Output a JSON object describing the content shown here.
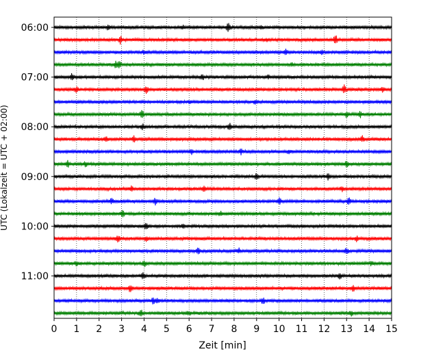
{
  "chart_data": {
    "type": "line",
    "subtype": "helicorder",
    "xlabel": "Zeit  [min]",
    "ylabel": "UTC (Lokalzeit = UTC + 02:00)",
    "xlim": [
      0,
      15
    ],
    "x_ticks": [
      "0",
      "1",
      "2",
      "3",
      "4",
      "5",
      "6",
      "7",
      "8",
      "9",
      "10",
      "11",
      "12",
      "13",
      "14",
      "15"
    ],
    "y_tick_labels": [
      "06:00",
      "07:00",
      "08:00",
      "09:00",
      "10:00",
      "11:00"
    ],
    "trace_start_times": [
      "06:00",
      "06:15",
      "06:30",
      "06:45",
      "07:00",
      "07:15",
      "07:30",
      "07:45",
      "08:00",
      "08:15",
      "08:30",
      "08:45",
      "09:00",
      "09:15",
      "09:30",
      "09:45",
      "10:00",
      "10:15",
      "10:30",
      "10:45",
      "11:00",
      "11:15",
      "11:30",
      "11:45"
    ],
    "color_cycle": [
      "#000000",
      "#ff0000",
      "#0000ff",
      "#008000"
    ],
    "grid": "vertical dotted lines at each minute",
    "traces": [
      {
        "start": "06:00",
        "color": "#000000",
        "spikes": [
          [
            2.4,
            0.5
          ],
          [
            5.7,
            0.4
          ],
          [
            7.75,
            0.9
          ],
          [
            9.2,
            0.35
          ]
        ]
      },
      {
        "start": "06:15",
        "color": "#ff0000",
        "spikes": [
          [
            2.95,
            0.8
          ],
          [
            12.5,
            1.0
          ],
          [
            9.45,
            0.3
          ]
        ]
      },
      {
        "start": "06:30",
        "color": "#0000ff",
        "spikes": [
          [
            4.0,
            0.3
          ],
          [
            10.3,
            0.45
          ],
          [
            11.9,
            0.35
          ]
        ]
      },
      {
        "start": "06:45",
        "color": "#008000",
        "spikes": [
          [
            2.75,
            0.7
          ],
          [
            2.9,
            0.6
          ],
          [
            10.6,
            0.3
          ]
        ]
      },
      {
        "start": "07:00",
        "color": "#000000",
        "spikes": [
          [
            0.8,
            0.8
          ],
          [
            6.6,
            0.6
          ],
          [
            9.5,
            0.35
          ]
        ]
      },
      {
        "start": "07:15",
        "color": "#ff0000",
        "spikes": [
          [
            1.0,
            0.5
          ],
          [
            4.1,
            0.7
          ],
          [
            12.9,
            0.9
          ],
          [
            14.6,
            0.5
          ]
        ]
      },
      {
        "start": "07:30",
        "color": "#0000ff",
        "spikes": [
          [
            6.0,
            0.3
          ],
          [
            8.95,
            0.4
          ]
        ]
      },
      {
        "start": "07:45",
        "color": "#008000",
        "spikes": [
          [
            3.9,
            0.8
          ],
          [
            13.0,
            0.6
          ],
          [
            13.6,
            0.5
          ]
        ]
      },
      {
        "start": "08:00",
        "color": "#000000",
        "spikes": [
          [
            3.95,
            0.5
          ],
          [
            7.8,
            0.8
          ]
        ]
      },
      {
        "start": "08:15",
        "color": "#ff0000",
        "spikes": [
          [
            2.3,
            0.5
          ],
          [
            3.55,
            0.6
          ],
          [
            13.7,
            0.6
          ]
        ]
      },
      {
        "start": "08:30",
        "color": "#0000ff",
        "spikes": [
          [
            6.1,
            0.4
          ],
          [
            8.3,
            0.5
          ],
          [
            10.45,
            0.3
          ]
        ]
      },
      {
        "start": "08:45",
        "color": "#008000",
        "spikes": [
          [
            0.6,
            0.7
          ],
          [
            1.4,
            0.4
          ],
          [
            13.0,
            0.7
          ]
        ]
      },
      {
        "start": "09:00",
        "color": "#000000",
        "spikes": [
          [
            9.0,
            0.5
          ],
          [
            12.2,
            0.7
          ]
        ]
      },
      {
        "start": "09:15",
        "color": "#ff0000",
        "spikes": [
          [
            3.45,
            0.7
          ],
          [
            6.65,
            0.6
          ],
          [
            12.8,
            0.4
          ]
        ]
      },
      {
        "start": "09:30",
        "color": "#0000ff",
        "spikes": [
          [
            2.55,
            0.6
          ],
          [
            4.5,
            0.6
          ],
          [
            10.0,
            0.6
          ],
          [
            13.1,
            0.7
          ]
        ]
      },
      {
        "start": "09:45",
        "color": "#008000",
        "spikes": [
          [
            3.05,
            0.8
          ],
          [
            7.4,
            0.4
          ]
        ]
      },
      {
        "start": "10:00",
        "color": "#000000",
        "spikes": [
          [
            4.1,
            0.8
          ],
          [
            5.7,
            0.4
          ]
        ]
      },
      {
        "start": "10:15",
        "color": "#ff0000",
        "spikes": [
          [
            2.85,
            0.7
          ],
          [
            4.1,
            0.5
          ],
          [
            13.45,
            0.5
          ]
        ]
      },
      {
        "start": "10:30",
        "color": "#0000ff",
        "spikes": [
          [
            6.4,
            0.6
          ],
          [
            8.2,
            0.5
          ],
          [
            13.0,
            0.7
          ]
        ]
      },
      {
        "start": "10:45",
        "color": "#008000",
        "spikes": [
          [
            1.0,
            0.4
          ],
          [
            4.0,
            0.7
          ],
          [
            14.1,
            0.4
          ]
        ]
      },
      {
        "start": "11:00",
        "color": "#000000",
        "spikes": [
          [
            3.95,
            0.7
          ],
          [
            12.7,
            0.5
          ]
        ]
      },
      {
        "start": "11:15",
        "color": "#ff0000",
        "spikes": [
          [
            3.4,
            0.9
          ],
          [
            13.3,
            0.6
          ]
        ]
      },
      {
        "start": "11:30",
        "color": "#0000ff",
        "spikes": [
          [
            4.4,
            0.6
          ],
          [
            4.6,
            0.5
          ],
          [
            9.3,
            0.6
          ]
        ]
      },
      {
        "start": "11:45",
        "color": "#008000",
        "spikes": [
          [
            3.85,
            0.6
          ],
          [
            6.0,
            0.4
          ],
          [
            13.2,
            0.5
          ]
        ]
      }
    ]
  }
}
